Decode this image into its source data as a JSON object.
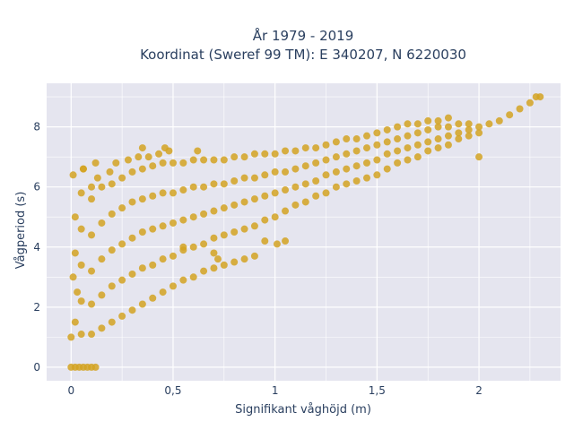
{
  "chart_data": {
    "type": "scatter",
    "title_lines": [
      "År 1979 - 2019",
      "Koordinat (Sweref 99 TM): E 340207, N 6220030"
    ],
    "xlabel": "Signifikant våghöjd (m)",
    "ylabel": "Vågperiod (s)",
    "xlim": [
      -0.12,
      2.4
    ],
    "ylim": [
      -0.45,
      9.45
    ],
    "x_ticks": [
      {
        "value": 0,
        "label": "0"
      },
      {
        "value": 0.5,
        "label": "0,5"
      },
      {
        "value": 1,
        "label": "1"
      },
      {
        "value": 1.5,
        "label": "1,5"
      },
      {
        "value": 2,
        "label": "2"
      }
    ],
    "y_ticks": [
      {
        "value": 0,
        "label": "0"
      },
      {
        "value": 2,
        "label": "2"
      },
      {
        "value": 4,
        "label": "4"
      },
      {
        "value": 6,
        "label": "6"
      },
      {
        "value": 8,
        "label": "8"
      }
    ],
    "grid": true,
    "legend": false,
    "colors": {
      "marker": "#d4a322",
      "plot_bg": "#e5e5ef",
      "grid": "#ffffff",
      "text": "#2a3f5f"
    },
    "series": [
      {
        "values": [
          [
            0.0,
            0.0
          ],
          [
            0.02,
            0.0
          ],
          [
            0.04,
            0.0
          ],
          [
            0.06,
            0.0
          ],
          [
            0.08,
            0.0
          ],
          [
            0.1,
            0.0
          ],
          [
            0.12,
            0.0
          ],
          [
            0.0,
            1.0
          ],
          [
            0.01,
            3.0
          ],
          [
            0.02,
            5.0
          ],
          [
            0.01,
            6.4
          ],
          [
            0.02,
            1.5
          ],
          [
            0.03,
            2.5
          ],
          [
            0.02,
            3.8
          ],
          [
            0.05,
            1.1
          ],
          [
            0.05,
            2.2
          ],
          [
            0.05,
            3.4
          ],
          [
            0.05,
            4.6
          ],
          [
            0.05,
            5.8
          ],
          [
            0.06,
            6.6
          ],
          [
            0.1,
            1.1
          ],
          [
            0.1,
            2.1
          ],
          [
            0.1,
            3.2
          ],
          [
            0.1,
            4.4
          ],
          [
            0.1,
            5.6
          ],
          [
            0.1,
            6.0
          ],
          [
            0.15,
            1.3
          ],
          [
            0.15,
            2.4
          ],
          [
            0.15,
            3.6
          ],
          [
            0.15,
            4.8
          ],
          [
            0.15,
            6.0
          ],
          [
            0.13,
            6.3
          ],
          [
            0.2,
            1.5
          ],
          [
            0.2,
            2.7
          ],
          [
            0.2,
            3.9
          ],
          [
            0.2,
            5.1
          ],
          [
            0.2,
            6.1
          ],
          [
            0.19,
            6.5
          ],
          [
            0.25,
            1.7
          ],
          [
            0.25,
            2.9
          ],
          [
            0.25,
            4.1
          ],
          [
            0.25,
            5.3
          ],
          [
            0.25,
            6.3
          ],
          [
            0.22,
            6.8
          ],
          [
            0.3,
            1.9
          ],
          [
            0.3,
            3.1
          ],
          [
            0.3,
            4.3
          ],
          [
            0.3,
            5.5
          ],
          [
            0.3,
            6.5
          ],
          [
            0.28,
            6.9
          ],
          [
            0.35,
            2.1
          ],
          [
            0.35,
            3.3
          ],
          [
            0.35,
            4.5
          ],
          [
            0.35,
            5.6
          ],
          [
            0.35,
            6.6
          ],
          [
            0.33,
            7.0
          ],
          [
            0.4,
            2.3
          ],
          [
            0.4,
            3.4
          ],
          [
            0.4,
            4.6
          ],
          [
            0.4,
            5.7
          ],
          [
            0.4,
            6.7
          ],
          [
            0.38,
            7.0
          ],
          [
            0.45,
            2.5
          ],
          [
            0.45,
            3.6
          ],
          [
            0.45,
            4.7
          ],
          [
            0.45,
            5.8
          ],
          [
            0.45,
            6.8
          ],
          [
            0.43,
            7.1
          ],
          [
            0.5,
            2.7
          ],
          [
            0.5,
            3.7
          ],
          [
            0.5,
            4.8
          ],
          [
            0.5,
            5.8
          ],
          [
            0.5,
            6.8
          ],
          [
            0.48,
            7.2
          ],
          [
            0.55,
            2.9
          ],
          [
            0.55,
            3.9
          ],
          [
            0.55,
            4.9
          ],
          [
            0.55,
            5.9
          ],
          [
            0.55,
            6.8
          ],
          [
            0.6,
            3.0
          ],
          [
            0.6,
            4.0
          ],
          [
            0.6,
            5.0
          ],
          [
            0.6,
            6.0
          ],
          [
            0.6,
            6.9
          ],
          [
            0.62,
            7.2
          ],
          [
            0.65,
            3.2
          ],
          [
            0.65,
            4.1
          ],
          [
            0.65,
            5.1
          ],
          [
            0.65,
            6.0
          ],
          [
            0.65,
            6.9
          ],
          [
            0.7,
            3.3
          ],
          [
            0.7,
            4.3
          ],
          [
            0.7,
            5.2
          ],
          [
            0.7,
            6.1
          ],
          [
            0.7,
            6.9
          ],
          [
            0.75,
            3.4
          ],
          [
            0.75,
            4.4
          ],
          [
            0.75,
            5.3
          ],
          [
            0.75,
            6.1
          ],
          [
            0.75,
            6.9
          ],
          [
            0.8,
            3.5
          ],
          [
            0.8,
            4.5
          ],
          [
            0.8,
            5.4
          ],
          [
            0.8,
            6.2
          ],
          [
            0.8,
            7.0
          ],
          [
            0.85,
            3.6
          ],
          [
            0.85,
            4.6
          ],
          [
            0.85,
            5.5
          ],
          [
            0.85,
            6.3
          ],
          [
            0.85,
            7.0
          ],
          [
            0.9,
            3.7
          ],
          [
            0.9,
            4.7
          ],
          [
            0.9,
            5.6
          ],
          [
            0.9,
            6.3
          ],
          [
            0.9,
            7.1
          ],
          [
            0.95,
            4.9
          ],
          [
            0.95,
            5.7
          ],
          [
            0.95,
            6.4
          ],
          [
            0.95,
            7.1
          ],
          [
            1.0,
            5.0
          ],
          [
            1.0,
            5.8
          ],
          [
            1.0,
            6.5
          ],
          [
            1.0,
            7.1
          ],
          [
            1.05,
            5.2
          ],
          [
            1.05,
            5.9
          ],
          [
            1.05,
            6.5
          ],
          [
            1.05,
            7.2
          ],
          [
            1.1,
            5.4
          ],
          [
            1.1,
            6.0
          ],
          [
            1.1,
            6.6
          ],
          [
            1.1,
            7.2
          ],
          [
            1.15,
            5.5
          ],
          [
            1.15,
            6.1
          ],
          [
            1.15,
            6.7
          ],
          [
            1.15,
            7.3
          ],
          [
            1.2,
            5.7
          ],
          [
            1.2,
            6.2
          ],
          [
            1.2,
            6.8
          ],
          [
            1.2,
            7.3
          ],
          [
            1.25,
            5.8
          ],
          [
            1.25,
            6.4
          ],
          [
            1.25,
            6.9
          ],
          [
            1.25,
            7.4
          ],
          [
            1.3,
            6.0
          ],
          [
            1.3,
            6.5
          ],
          [
            1.3,
            7.0
          ],
          [
            1.3,
            7.5
          ],
          [
            1.35,
            6.1
          ],
          [
            1.35,
            6.6
          ],
          [
            1.35,
            7.1
          ],
          [
            1.35,
            7.6
          ],
          [
            1.4,
            6.2
          ],
          [
            1.4,
            6.7
          ],
          [
            1.4,
            7.2
          ],
          [
            1.4,
            7.6
          ],
          [
            1.45,
            6.3
          ],
          [
            1.45,
            6.8
          ],
          [
            1.45,
            7.3
          ],
          [
            1.45,
            7.7
          ],
          [
            1.5,
            6.4
          ],
          [
            1.5,
            6.9
          ],
          [
            1.5,
            7.4
          ],
          [
            1.5,
            7.8
          ],
          [
            1.55,
            6.6
          ],
          [
            1.55,
            7.1
          ],
          [
            1.55,
            7.5
          ],
          [
            1.55,
            7.9
          ],
          [
            1.6,
            6.8
          ],
          [
            1.6,
            7.2
          ],
          [
            1.6,
            7.6
          ],
          [
            1.6,
            8.0
          ],
          [
            1.65,
            6.9
          ],
          [
            1.65,
            7.3
          ],
          [
            1.65,
            7.7
          ],
          [
            1.65,
            8.1
          ],
          [
            1.7,
            7.0
          ],
          [
            1.7,
            7.4
          ],
          [
            1.7,
            7.8
          ],
          [
            1.7,
            8.1
          ],
          [
            1.75,
            7.2
          ],
          [
            1.75,
            7.5
          ],
          [
            1.75,
            7.9
          ],
          [
            1.75,
            8.2
          ],
          [
            1.8,
            7.3
          ],
          [
            1.8,
            7.6
          ],
          [
            1.8,
            8.0
          ],
          [
            1.8,
            8.2
          ],
          [
            1.85,
            7.4
          ],
          [
            1.85,
            7.7
          ],
          [
            1.85,
            8.0
          ],
          [
            1.85,
            8.3
          ],
          [
            1.9,
            7.6
          ],
          [
            1.9,
            7.8
          ],
          [
            1.9,
            8.1
          ],
          [
            1.95,
            7.7
          ],
          [
            1.95,
            7.9
          ],
          [
            1.95,
            8.1
          ],
          [
            2.0,
            7.0
          ],
          [
            2.0,
            7.8
          ],
          [
            2.0,
            8.0
          ],
          [
            2.05,
            8.1
          ],
          [
            2.1,
            8.2
          ],
          [
            2.15,
            8.4
          ],
          [
            2.2,
            8.6
          ],
          [
            2.25,
            8.8
          ],
          [
            2.28,
            9.0
          ],
          [
            2.3,
            9.0
          ],
          [
            0.06,
            6.6
          ],
          [
            0.12,
            6.8
          ],
          [
            0.35,
            7.3
          ],
          [
            0.46,
            7.3
          ],
          [
            0.95,
            4.2
          ],
          [
            1.01,
            4.1
          ],
          [
            1.05,
            4.2
          ],
          [
            0.55,
            4.0
          ],
          [
            0.7,
            3.8
          ],
          [
            0.72,
            3.6
          ]
        ]
      }
    ]
  }
}
